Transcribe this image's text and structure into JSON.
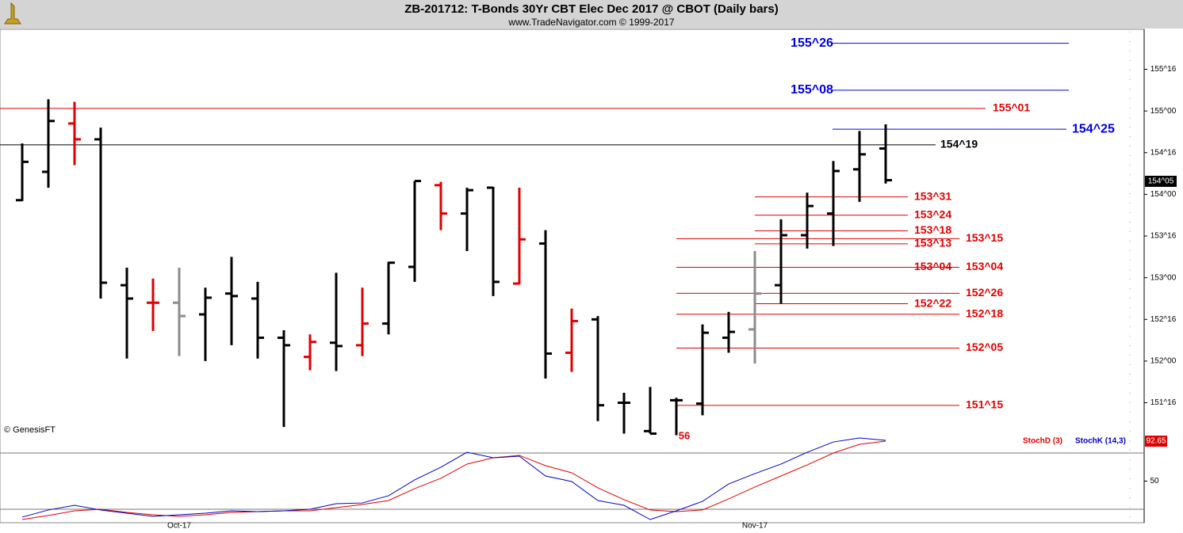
{
  "chart_data": [
    {
      "type": "ohlc",
      "title": "ZB-201712:  T-Bonds 30Yr CBT Elec Dec 2017 @ CBOT  (Daily bars)",
      "subtitle": "www.TradeNavigator.com © 1999-2017",
      "source": "© GenesisFT",
      "categories": [
        null,
        null,
        null,
        null,
        null,
        null,
        "Oct-17",
        null,
        null,
        null,
        null,
        null,
        null,
        null,
        null,
        null,
        null,
        null,
        null,
        null,
        null,
        null,
        null,
        null,
        null,
        null,
        null,
        null,
        "Nov-17",
        null,
        null,
        null,
        null,
        null
      ],
      "open": [
        153.93,
        154.27,
        154.85,
        154.66,
        152.91,
        152.7,
        152.7,
        152.56,
        152.81,
        152.75,
        152.28,
        152.05,
        152.22,
        152.19,
        152.45,
        153.13,
        154.11,
        153.77,
        154.08,
        152.93,
        153.41,
        152.1,
        152.5,
        151.5,
        151.16,
        151.53,
        151.49,
        152.28,
        152.38,
        152.91,
        153.51,
        153.77,
        154.3,
        154.55
      ],
      "high": [
        154.61,
        155.14,
        155.11,
        154.8,
        153.12,
        152.99,
        153.12,
        152.88,
        153.25,
        152.95,
        152.37,
        152.32,
        153.06,
        152.88,
        153.19,
        154.16,
        154.15,
        154.08,
        154.09,
        154.08,
        153.57,
        152.63,
        152.54,
        151.62,
        151.69,
        151.56,
        152.44,
        152.59,
        153.32,
        153.7,
        154.02,
        154.4,
        154.76,
        154.84
      ],
      "low": [
        153.92,
        154.08,
        154.35,
        152.75,
        152.03,
        152.36,
        152.06,
        152.0,
        152.19,
        152.03,
        151.21,
        151.89,
        151.88,
        152.06,
        152.32,
        152.95,
        153.57,
        153.32,
        152.78,
        152.92,
        151.79,
        151.87,
        151.28,
        151.13,
        151.13,
        151.11,
        151.35,
        152.1,
        151.97,
        152.69,
        153.35,
        153.38,
        153.91,
        154.13
      ],
      "close": [
        154.39,
        154.88,
        154.66,
        152.94,
        152.75,
        152.7,
        152.54,
        152.76,
        152.78,
        152.28,
        152.19,
        152.23,
        152.18,
        152.45,
        153.18,
        154.16,
        153.77,
        154.05,
        152.95,
        153.46,
        152.09,
        152.48,
        151.47,
        151.5,
        151.13,
        151.53,
        152.34,
        152.35,
        152.81,
        153.51,
        153.86,
        154.28,
        154.48,
        154.17
      ],
      "bar_colors": [
        "#000000",
        "#000000",
        "#e00000",
        "#000000",
        "#000000",
        "#e00000",
        "#8c8c8c",
        "#000000",
        "#000000",
        "#000000",
        "#000000",
        "#e00000",
        "#000000",
        "#e00000",
        "#000000",
        "#000000",
        "#e00000",
        "#000000",
        "#000000",
        "#e00000",
        "#000000",
        "#e00000",
        "#000000",
        "#000000",
        "#000000",
        "#000000",
        "#000000",
        "#000000",
        "#8c8c8c",
        "#000000",
        "#000000",
        "#000000",
        "#000000",
        "#000000"
      ],
      "ylim": [
        150.94,
        155.975
      ],
      "yticks": [
        {
          "value": 151.5,
          "label": "151^16"
        },
        {
          "value": 152,
          "label": "152^00"
        },
        {
          "value": 152.5,
          "label": "152^16"
        },
        {
          "value": 153,
          "label": "153^00"
        },
        {
          "value": 153.5,
          "label": "153^16"
        },
        {
          "value": 154,
          "label": "154^00"
        },
        {
          "value": 154.5,
          "label": "154^16"
        },
        {
          "value": 155,
          "label": "155^00"
        },
        {
          "value": 155.5,
          "label": "155^16"
        }
      ],
      "last_price": {
        "value": 154.15625,
        "label": "154^05"
      },
      "annotation": "56",
      "levels": [
        {
          "label": "155^26",
          "value": 155.8125,
          "color": "#0000e0"
        },
        {
          "label": "155^08",
          "value": 155.25,
          "color": "#0000e0"
        },
        {
          "label": "155^01",
          "value": 155.03125,
          "color": "#e00000"
        },
        {
          "label": "154^25",
          "value": 154.78125,
          "color": "#0000e0"
        },
        {
          "label": "154^19",
          "value": 154.59375,
          "color": "#000000"
        },
        {
          "label": "153^31",
          "value": 153.96875,
          "color": "#e00000"
        },
        {
          "label": "153^24",
          "value": 153.75,
          "color": "#e00000"
        },
        {
          "label": "153^18",
          "value": 153.5625,
          "color": "#e00000"
        },
        {
          "label": "153^15",
          "value": 153.46875,
          "color": "#e00000"
        },
        {
          "label": "153^13",
          "value": 153.40625,
          "color": "#e00000"
        },
        {
          "label": "153^04",
          "value": 153.125,
          "color": "#e00000"
        },
        {
          "label": "153^04",
          "value": 153.125,
          "color": "#e00000"
        },
        {
          "label": "152^26",
          "value": 152.8125,
          "color": "#e00000"
        },
        {
          "label": "152^22",
          "value": 152.6875,
          "color": "#e00000"
        },
        {
          "label": "152^18",
          "value": 152.5625,
          "color": "#e00000"
        },
        {
          "label": "152^05",
          "value": 152.15625,
          "color": "#e00000"
        },
        {
          "label": "151^15",
          "value": 151.46875,
          "color": "#e00000"
        }
      ]
    },
    {
      "type": "line",
      "series": [
        {
          "name": "StochD (3)",
          "color": "#e00000",
          "values": [
            9.0,
            13.3,
            18.3,
            20.0,
            16.6,
            14.1,
            12.4,
            14.1,
            16.6,
            17.5,
            18.3,
            18.3,
            21.7,
            25.1,
            29.3,
            42.0,
            53.0,
            68.2,
            74.9,
            77.5,
            66.5,
            58.9,
            42.9,
            30.2,
            19.2,
            17.5,
            19.2,
            31.0,
            43.7,
            55.5,
            67.3,
            80.0,
            89.3,
            92.65
          ]
        },
        {
          "name": "StochK (14,3)",
          "color": "#0000c0",
          "values": [
            11.6,
            19.2,
            24.2,
            19.2,
            15.8,
            12.4,
            14.1,
            15.8,
            18.3,
            17.5,
            18.3,
            20.0,
            25.9,
            26.7,
            34.4,
            51.3,
            64.8,
            80.8,
            74.9,
            76.6,
            55.5,
            49.6,
            29.3,
            24.2,
            9.0,
            18.3,
            28.4,
            47.0,
            58.0,
            68.2,
            80.8,
            91.8,
            96.1,
            93.5
          ]
        }
      ],
      "ylim": [
        5,
        100
      ],
      "yticks": [
        50
      ],
      "hlines": [
        20,
        80
      ],
      "last_value": 92.65
    }
  ]
}
